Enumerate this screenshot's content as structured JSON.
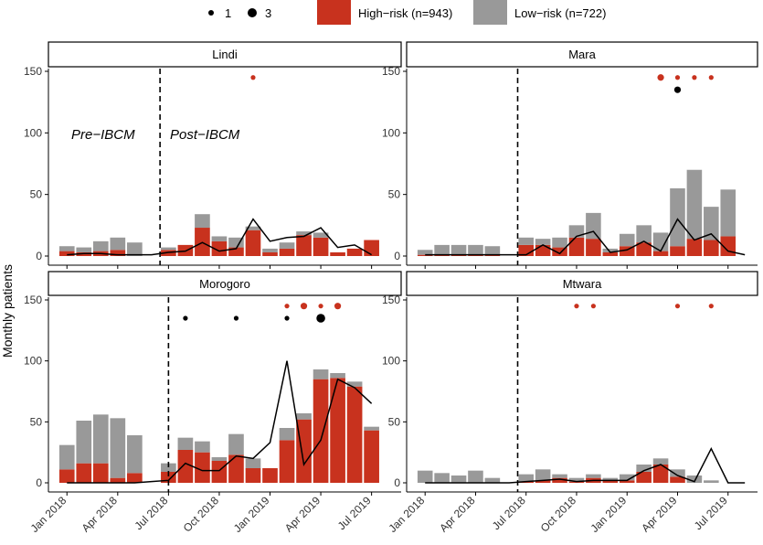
{
  "chart_data": {
    "type": "bar",
    "ylabel": "Monthly patients",
    "ylim": [
      0,
      150
    ],
    "yticks": [
      0,
      50,
      100,
      150
    ],
    "x_tick_labels": [
      "Jan 2018",
      "Apr 2018",
      "Jul 2018",
      "Oct 2018",
      "Jan 2019",
      "Apr 2019",
      "Jul 2019"
    ],
    "x_tick_month_index": [
      0,
      3,
      6,
      9,
      12,
      15,
      18
    ],
    "months": [
      "2018-01",
      "2018-02",
      "2018-03",
      "2018-04",
      "2018-05",
      "2018-06",
      "2018-07",
      "2018-08",
      "2018-09",
      "2018-10",
      "2018-11",
      "2018-12",
      "2019-01",
      "2019-02",
      "2019-03",
      "2019-04",
      "2019-05",
      "2019-06",
      "2019-07"
    ],
    "legend": {
      "size_title_1": "1",
      "size_title_3": "3",
      "high_risk_label": "High−risk (n=943)",
      "low_risk_label": "Low−risk (n=722)",
      "high_risk_color": "#c8321e",
      "low_risk_color": "#999999"
    },
    "annotations": {
      "pre": "Pre−IBCM",
      "post": "Post−IBCM"
    },
    "panels": [
      {
        "name": "Lindi",
        "intervention_month": 5.5,
        "high_risk": [
          4,
          3,
          4,
          5,
          0,
          0,
          5,
          9,
          23,
          12,
          7,
          21,
          3,
          6,
          17,
          15,
          3,
          6,
          13
        ],
        "low_risk": [
          4,
          4,
          8,
          10,
          11,
          0,
          2,
          0,
          11,
          4,
          8,
          3,
          3,
          5,
          3,
          4,
          0,
          0,
          0
        ],
        "line": [
          1,
          2,
          2,
          1,
          1,
          1,
          3,
          4,
          11,
          4,
          6,
          30,
          12,
          15,
          16,
          23,
          7,
          9,
          1
        ],
        "line_months": 19,
        "red_dots": [
          {
            "m": 11.5,
            "y": 145,
            "size": 1
          }
        ],
        "black_dots": []
      },
      {
        "name": "Mara",
        "intervention_month": 5.5,
        "high_risk": [
          1,
          1,
          1,
          1,
          1,
          0,
          9,
          9,
          7,
          15,
          14,
          3,
          8,
          11,
          4,
          8,
          14,
          13,
          16
        ],
        "low_risk": [
          4,
          8,
          8,
          8,
          7,
          0,
          6,
          5,
          8,
          10,
          21,
          3,
          10,
          14,
          15,
          47,
          56,
          27,
          38
        ],
        "line": [
          1,
          1,
          1,
          1,
          1,
          1,
          1,
          9,
          2,
          16,
          20,
          3,
          5,
          12,
          4,
          30,
          13,
          18,
          4,
          1
        ],
        "line_months": 20,
        "red_dots": [
          {
            "m": 14.5,
            "y": 145,
            "size": 2
          },
          {
            "m": 15.5,
            "y": 145,
            "size": 1
          },
          {
            "m": 16.5,
            "y": 145,
            "size": 1
          },
          {
            "m": 17.5,
            "y": 145,
            "size": 1
          }
        ],
        "black_dots": [
          {
            "m": 15.5,
            "y": 135,
            "size": 2
          }
        ]
      },
      {
        "name": "Morogoro",
        "intervention_month": 6,
        "high_risk": [
          11,
          16,
          16,
          4,
          8,
          0,
          9,
          27,
          25,
          18,
          23,
          12,
          12,
          35,
          52,
          85,
          86,
          79,
          43
        ],
        "low_risk": [
          20,
          35,
          40,
          49,
          31,
          0,
          7,
          10,
          9,
          3,
          17,
          8,
          0,
          10,
          5,
          8,
          4,
          4,
          3
        ],
        "line": [
          0,
          0,
          0,
          0,
          0,
          1,
          2,
          16,
          10,
          10,
          22,
          20,
          33,
          100,
          15,
          35,
          85,
          78,
          65
        ],
        "line_months": 19,
        "red_dots": [
          {
            "m": 13.5,
            "y": 145,
            "size": 1
          },
          {
            "m": 14.5,
            "y": 145,
            "size": 2
          },
          {
            "m": 15.5,
            "y": 145,
            "size": 1
          },
          {
            "m": 16.5,
            "y": 145,
            "size": 2
          }
        ],
        "black_dots": [
          {
            "m": 7.5,
            "y": 135,
            "size": 1
          },
          {
            "m": 10.5,
            "y": 135,
            "size": 1
          },
          {
            "m": 13.5,
            "y": 135,
            "size": 1
          },
          {
            "m": 15.5,
            "y": 135,
            "size": 3
          }
        ]
      },
      {
        "name": "Mtwara",
        "intervention_month": 5.5,
        "high_risk": [
          0,
          0,
          0,
          0,
          0,
          0,
          1,
          2,
          4,
          1,
          4,
          2,
          2,
          9,
          15,
          5,
          0,
          0,
          0
        ],
        "low_risk": [
          10,
          8,
          6,
          10,
          4,
          0,
          6,
          9,
          3,
          3,
          3,
          2,
          5,
          6,
          5,
          6,
          6,
          2,
          0
        ],
        "line": [
          0,
          0,
          0,
          0,
          0,
          0,
          1,
          2,
          3,
          1,
          2,
          2,
          2,
          10,
          15,
          6,
          1,
          28,
          0,
          0
        ],
        "line_months": 20,
        "red_dots": [
          {
            "m": 9.5,
            "y": 145,
            "size": 1
          },
          {
            "m": 10.5,
            "y": 145,
            "size": 1
          },
          {
            "m": 15.5,
            "y": 145,
            "size": 1
          },
          {
            "m": 17.5,
            "y": 145,
            "size": 1
          }
        ],
        "black_dots": []
      }
    ]
  }
}
